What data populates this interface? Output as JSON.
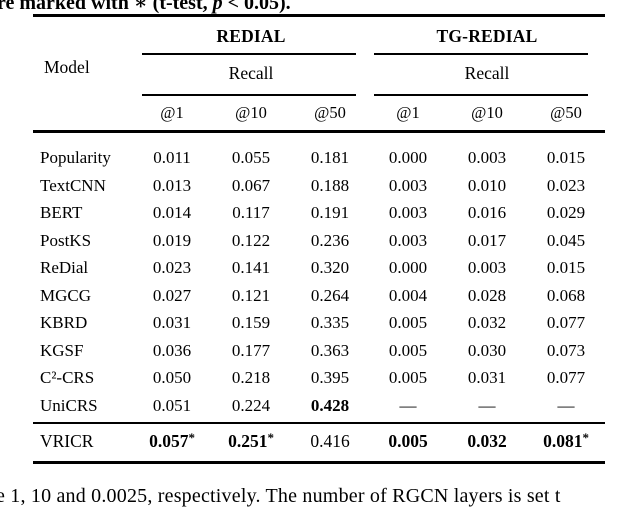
{
  "colors": {
    "background": "#ffffff",
    "text": "#000000",
    "rule": "#000000"
  },
  "caption_top": {
    "pre": "re marked with ∗ (t-test, ",
    "italic": "p",
    "post": " < 0.05)."
  },
  "caption_bottom": "e 1, 10 and 0.0025, respectively. The number of RGCN layers is set t",
  "table": {
    "model_header": "Model",
    "groups": [
      {
        "label": "REDIAL",
        "metric": "Recall",
        "sub": [
          "@1",
          "@10",
          "@50"
        ]
      },
      {
        "label": "TG-REDIAL",
        "metric": "Recall",
        "sub": [
          "@1",
          "@10",
          "@50"
        ]
      }
    ],
    "rows": [
      {
        "model": "Popularity",
        "values": [
          {
            "t": "0.011"
          },
          {
            "t": "0.055"
          },
          {
            "t": "0.181"
          },
          {
            "t": "0.000"
          },
          {
            "t": "0.003"
          },
          {
            "t": "0.015"
          }
        ]
      },
      {
        "model": "TextCNN",
        "values": [
          {
            "t": "0.013"
          },
          {
            "t": "0.067"
          },
          {
            "t": "0.188"
          },
          {
            "t": "0.003"
          },
          {
            "t": "0.010"
          },
          {
            "t": "0.023"
          }
        ]
      },
      {
        "model": "BERT",
        "values": [
          {
            "t": "0.014"
          },
          {
            "t": "0.117"
          },
          {
            "t": "0.191"
          },
          {
            "t": "0.003"
          },
          {
            "t": "0.016"
          },
          {
            "t": "0.029"
          }
        ]
      },
      {
        "model": "PostKS",
        "values": [
          {
            "t": "0.019"
          },
          {
            "t": "0.122"
          },
          {
            "t": "0.236"
          },
          {
            "t": "0.003"
          },
          {
            "t": "0.017"
          },
          {
            "t": "0.045"
          }
        ]
      },
      {
        "model": "ReDial",
        "values": [
          {
            "t": "0.023"
          },
          {
            "t": "0.141"
          },
          {
            "t": "0.320"
          },
          {
            "t": "0.000"
          },
          {
            "t": "0.003"
          },
          {
            "t": "0.015"
          }
        ]
      },
      {
        "model": "MGCG",
        "values": [
          {
            "t": "0.027"
          },
          {
            "t": "0.121"
          },
          {
            "t": "0.264"
          },
          {
            "t": "0.004"
          },
          {
            "t": "0.028"
          },
          {
            "t": "0.068"
          }
        ]
      },
      {
        "model": "KBRD",
        "values": [
          {
            "t": "0.031"
          },
          {
            "t": "0.159"
          },
          {
            "t": "0.335"
          },
          {
            "t": "0.005"
          },
          {
            "t": "0.032"
          },
          {
            "t": "0.077"
          }
        ]
      },
      {
        "model": "KGSF",
        "values": [
          {
            "t": "0.036"
          },
          {
            "t": "0.177"
          },
          {
            "t": "0.363"
          },
          {
            "t": "0.005"
          },
          {
            "t": "0.030"
          },
          {
            "t": "0.073"
          }
        ]
      },
      {
        "model": "C²-CRS",
        "values": [
          {
            "t": "0.050"
          },
          {
            "t": "0.218"
          },
          {
            "t": "0.395"
          },
          {
            "t": "0.005"
          },
          {
            "t": "0.031"
          },
          {
            "t": "0.077"
          }
        ]
      },
      {
        "model": "UniCRS",
        "values": [
          {
            "t": "0.051"
          },
          {
            "t": "0.224"
          },
          {
            "t": "0.428",
            "b": true
          },
          {
            "t": "—"
          },
          {
            "t": "—"
          },
          {
            "t": "—"
          }
        ]
      }
    ],
    "final_row": {
      "model": "VRICR",
      "values": [
        {
          "t": "0.057",
          "b": true,
          "s": "*"
        },
        {
          "t": "0.251",
          "b": true,
          "s": "*"
        },
        {
          "t": "0.416"
        },
        {
          "t": "0.005",
          "b": true
        },
        {
          "t": "0.032",
          "b": true
        },
        {
          "t": "0.081",
          "b": true,
          "s": "*"
        }
      ]
    }
  }
}
